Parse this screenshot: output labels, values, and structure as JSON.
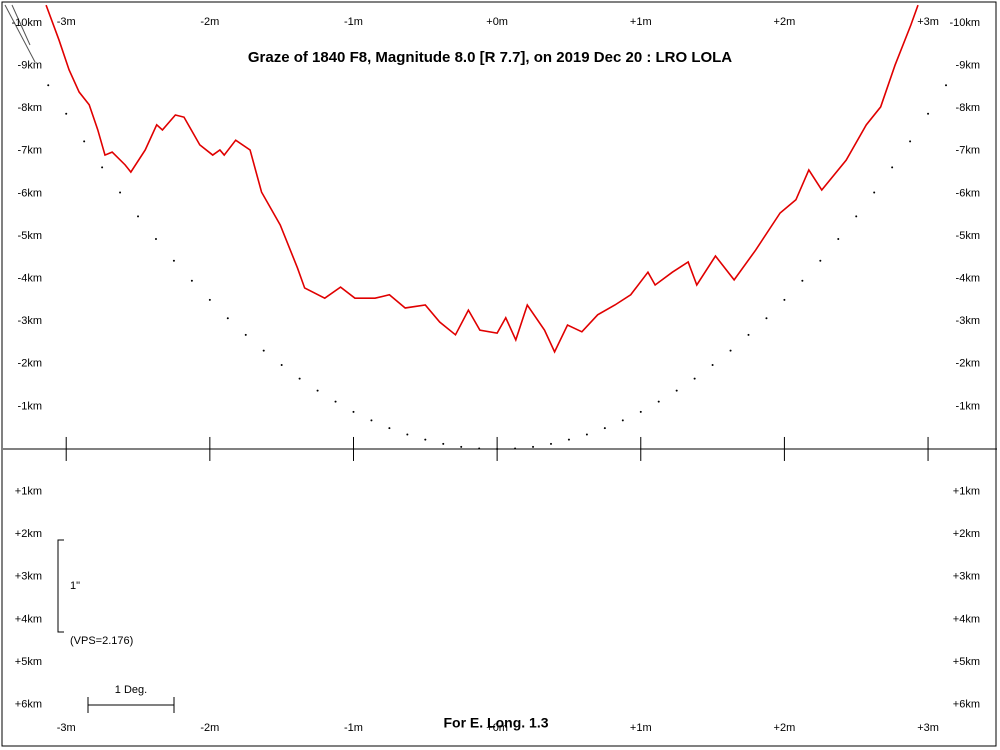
{
  "chart_data": {
    "type": "line",
    "title": "Graze of  1840 F8,  Magnitude 8.0 [R 7.7],  on 2019 Dec 20  :  LRO LOLA",
    "xlabel": "For E. Long. 1.3",
    "annotations": [
      "1\"",
      "(VPS=2.176)",
      "1 Deg."
    ],
    "xlim": [
      -3.44,
      3.48
    ],
    "ylim": [
      -10.47,
      6.95
    ],
    "xticks": [
      {
        "value": -3,
        "label": "-3m"
      },
      {
        "value": -2,
        "label": "-2m"
      },
      {
        "value": -1,
        "label": "-1m"
      },
      {
        "value": 0,
        "label": "+0m"
      },
      {
        "value": 1,
        "label": "+1m"
      },
      {
        "value": 2,
        "label": "+2m"
      },
      {
        "value": 3,
        "label": "+3m"
      }
    ],
    "yticks": [
      {
        "value": -10,
        "label": "-10km"
      },
      {
        "value": -9,
        "label": "-9km"
      },
      {
        "value": -8,
        "label": "-8km"
      },
      {
        "value": -7,
        "label": "-7km"
      },
      {
        "value": -6,
        "label": "-6km"
      },
      {
        "value": -5,
        "label": "-5km"
      },
      {
        "value": -4,
        "label": "-4km"
      },
      {
        "value": -3,
        "label": "-3km"
      },
      {
        "value": -2,
        "label": "-2km"
      },
      {
        "value": -1,
        "label": "-1km"
      },
      {
        "value": 1,
        "label": "+1km"
      },
      {
        "value": 2,
        "label": "+2km"
      },
      {
        "value": 3,
        "label": "+3km"
      },
      {
        "value": 4,
        "label": "+4km"
      },
      {
        "value": 5,
        "label": "+5km"
      },
      {
        "value": 6,
        "label": "+6km"
      }
    ],
    "series": [
      {
        "style": "line",
        "color": "#e00000",
        "x": [
          -3.14,
          -3.05,
          -2.98,
          -2.91,
          -2.84,
          -2.78,
          -2.73,
          -2.68,
          -2.59,
          -2.55,
          -2.45,
          -2.37,
          -2.33,
          -2.24,
          -2.18,
          -2.07,
          -1.98,
          -1.93,
          -1.9,
          -1.82,
          -1.72,
          -1.64,
          -1.51,
          -1.39,
          -1.34,
          -1.2,
          -1.09,
          -0.99,
          -0.85,
          -0.75,
          -0.64,
          -0.5,
          -0.4,
          -0.29,
          -0.2,
          -0.12,
          0,
          0.06,
          0.13,
          0.21,
          0.33,
          0.4,
          0.49,
          0.59,
          0.7,
          0.82,
          0.93,
          1.05,
          1.1,
          1.22,
          1.33,
          1.39,
          1.52,
          1.65,
          1.8,
          1.97,
          2.08,
          2.17,
          2.26,
          2.43,
          2.57,
          2.67,
          2.77,
          2.88,
          2.93
        ],
        "values": [
          -10.42,
          -9.6,
          -8.9,
          -8.38,
          -8.08,
          -7.49,
          -6.9,
          -6.97,
          -6.67,
          -6.5,
          -7.02,
          -7.61,
          -7.49,
          -7.84,
          -7.79,
          -7.14,
          -6.9,
          -7.02,
          -6.9,
          -7.25,
          -7.02,
          -6.03,
          -5.26,
          -4.25,
          -3.78,
          -3.54,
          -3.8,
          -3.54,
          -3.54,
          -3.62,
          -3.31,
          -3.38,
          -2.98,
          -2.68,
          -3.26,
          -2.79,
          -2.72,
          -3.08,
          -2.56,
          -3.38,
          -2.79,
          -2.28,
          -2.91,
          -2.75,
          -3.15,
          -3.38,
          -3.62,
          -4.15,
          -3.85,
          -4.15,
          -4.39,
          -3.85,
          -4.53,
          -3.97,
          -4.67,
          -5.54,
          -5.85,
          -6.55,
          -6.08,
          -6.78,
          -7.61,
          -8.03,
          -9.01,
          -9.95,
          -10.42
        ]
      },
      {
        "style": "dots",
        "color": "#000000",
        "x": [
          -3.125,
          -3,
          -2.875,
          -2.75,
          -2.625,
          -2.5,
          -2.375,
          -2.25,
          -2.125,
          -2,
          -1.875,
          -1.75,
          -1.625,
          -1.5,
          -1.375,
          -1.25,
          -1.125,
          -1,
          -0.875,
          -0.75,
          -0.625,
          -0.5,
          -0.375,
          -0.25,
          -0.125,
          0,
          0.125,
          0.25,
          0.375,
          0.5,
          0.625,
          0.75,
          0.875,
          1,
          1.125,
          1.25,
          1.375,
          1.5,
          1.625,
          1.75,
          1.875,
          2,
          2.125,
          2.25,
          2.375,
          2.5,
          2.625,
          2.75,
          2.875,
          3,
          3.125
        ],
        "values": [
          -8.54,
          -7.87,
          -7.22,
          -6.61,
          -6.02,
          -5.46,
          -4.93,
          -4.42,
          -3.95,
          -3.5,
          -3.07,
          -2.68,
          -2.31,
          -1.97,
          -1.65,
          -1.37,
          -1.11,
          -0.87,
          -0.67,
          -0.49,
          -0.34,
          -0.22,
          -0.12,
          -0.05,
          -0.01,
          0,
          -0.01,
          -0.05,
          -0.12,
          -0.22,
          -0.34,
          -0.49,
          -0.67,
          -0.87,
          -1.11,
          -1.37,
          -1.65,
          -1.97,
          -2.31,
          -2.68,
          -3.07,
          -3.5,
          -3.95,
          -4.42,
          -4.93,
          -5.46,
          -6.02,
          -6.61,
          -7.22,
          -7.87,
          -8.54
        ]
      }
    ]
  }
}
